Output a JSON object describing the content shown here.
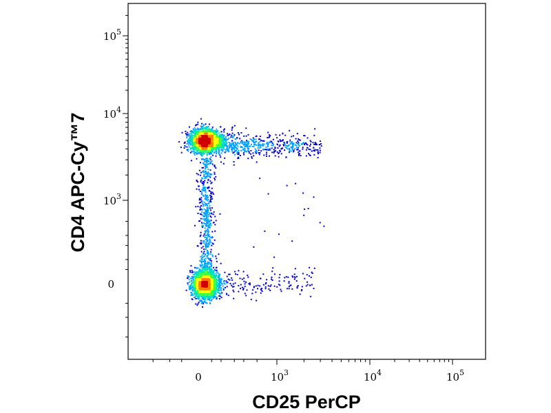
{
  "chart_data": {
    "type": "scatter",
    "style": "density-colored flow cytometry dot plot",
    "x_axis": {
      "label": "CD25 PerCP",
      "scale": "biexponential",
      "ticks": [
        {
          "value": 0,
          "base": "0",
          "exp": ""
        },
        {
          "value": 1000,
          "base": "10",
          "exp": "3"
        },
        {
          "value": 10000,
          "base": "10",
          "exp": "4"
        },
        {
          "value": 100000,
          "base": "10",
          "exp": "5"
        }
      ]
    },
    "y_axis": {
      "label": "CD4 APC-Cy™7",
      "scale": "biexponential",
      "ticks": [
        {
          "value": 0,
          "base": "0",
          "exp": ""
        },
        {
          "value": 1000,
          "base": "10",
          "exp": "3"
        },
        {
          "value": 10000,
          "base": "10",
          "exp": "4"
        },
        {
          "value": 100000,
          "base": "10",
          "exp": "5"
        }
      ]
    },
    "populations": [
      {
        "name_hint": "CD4+ CD25-",
        "center": {
          "x": 20,
          "y": 5000
        }
      },
      {
        "name_hint": "CD4- CD25-",
        "center": {
          "x": 20,
          "y": 0
        }
      },
      {
        "name_hint": "CD4+ CD25+ tail",
        "center": {
          "x": 600,
          "y": 4500
        }
      }
    ],
    "color_scale": [
      "#0000c8",
      "#00a0ff",
      "#00e0c0",
      "#40ff40",
      "#ffff00",
      "#ff8000",
      "#d00000"
    ],
    "grid": false,
    "legend": "none"
  }
}
